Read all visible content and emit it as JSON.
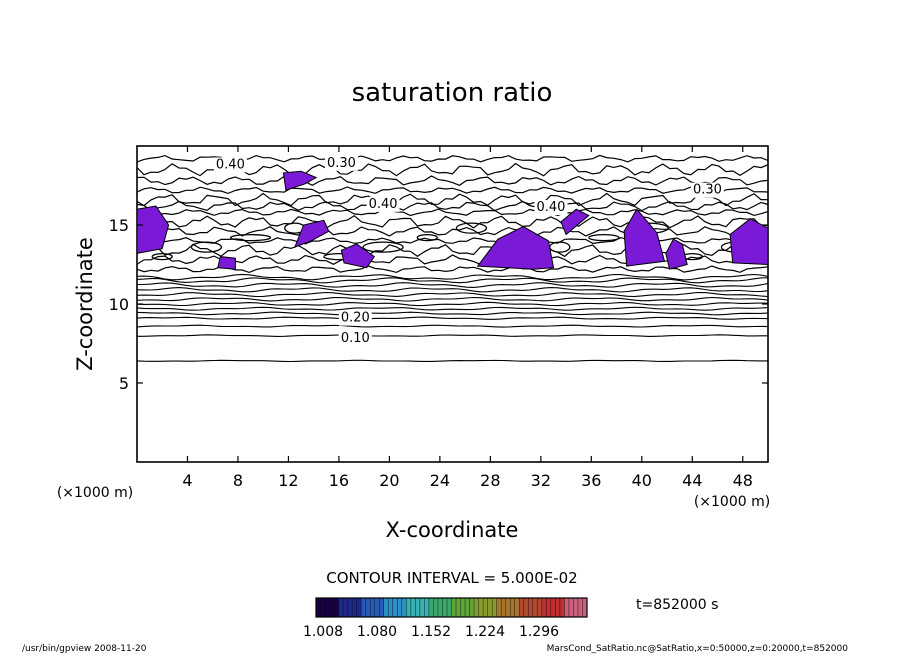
{
  "chart_data": {
    "type": "contour",
    "title": "saturation ratio",
    "xlabel": "X-coordinate",
    "ylabel": "Z-coordinate",
    "x_unit_left": "(×1000 m)",
    "x_unit_right": "(×1000 m)",
    "xlim": [
      0,
      50
    ],
    "ylim": [
      0,
      20
    ],
    "x_ticks": [
      4,
      8,
      12,
      16,
      20,
      24,
      28,
      32,
      36,
      40,
      44,
      48
    ],
    "y_ticks": [
      5,
      10,
      15
    ],
    "contour_interval_text": "CONTOUR INTERVAL = 5.000E-02",
    "contour_interval": 0.05,
    "contour_labels": [
      {
        "text": "0.40",
        "x": 7.4,
        "y": 18.9
      },
      {
        "text": "0.30",
        "x": 16.2,
        "y": 19.0
      },
      {
        "text": "0.30",
        "x": 45.2,
        "y": 17.3
      },
      {
        "text": "0.40",
        "x": 19.5,
        "y": 16.4
      },
      {
        "text": "0.40",
        "x": 32.8,
        "y": 16.2
      },
      {
        "text": "0.20",
        "x": 17.3,
        "y": 9.2
      },
      {
        "text": "0.10",
        "x": 17.3,
        "y": 7.9
      }
    ],
    "filled_regions_color": "#7a1ad6",
    "isoline_levels": [
      {
        "z": 6.4,
        "label": ""
      },
      {
        "z": 8.0,
        "label": "0.10"
      },
      {
        "z": 8.6,
        "label": ""
      },
      {
        "z": 9.1,
        "label": ""
      },
      {
        "z": 9.4,
        "label": "0.20"
      },
      {
        "z": 9.7,
        "label": ""
      },
      {
        "z": 10.0,
        "label": ""
      },
      {
        "z": 10.3,
        "label": ""
      },
      {
        "z": 10.6,
        "label": ""
      },
      {
        "z": 10.9,
        "label": ""
      },
      {
        "z": 11.2,
        "label": ""
      },
      {
        "z": 11.5,
        "label": ""
      },
      {
        "z": 11.7,
        "label": ""
      }
    ],
    "colorbar": {
      "tick_labels": [
        "1.008",
        "1.080",
        "1.152",
        "1.224",
        "1.296"
      ],
      "colors": [
        "#1a0040",
        "#1e2a8a",
        "#2a5ab8",
        "#2f8fc7",
        "#36b0b0",
        "#3aa86a",
        "#5fa53a",
        "#8a9a2e",
        "#a8742e",
        "#b04a30",
        "#c03030",
        "#c8607a"
      ]
    },
    "time_label": "t=852000 s"
  },
  "footer": {
    "left": "/usr/bin/gpview  2008-11-20",
    "right": "MarsCond_SatRatio.nc@SatRatio,x=0:50000,z=0:20000,t=852000"
  }
}
